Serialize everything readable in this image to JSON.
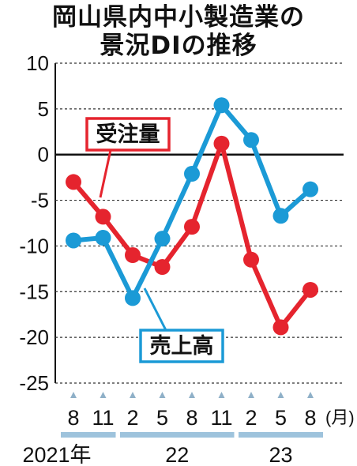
{
  "title_line1": "岡山県内中小製造業の",
  "title_line2": "景況DIの推移",
  "chart_data": {
    "type": "line",
    "title": "岡山県内中小製造業の景況DIの推移",
    "x": [
      "8",
      "11",
      "2",
      "5",
      "8",
      "11",
      "2",
      "5",
      "8"
    ],
    "x_unit": "(月)",
    "year_groups": [
      {
        "label": "2021年",
        "from": 0,
        "to": 1
      },
      {
        "label": "22",
        "from": 2,
        "to": 5
      },
      {
        "label": "23",
        "from": 6,
        "to": 8
      }
    ],
    "yticks": [
      "10",
      "5",
      "0",
      "-5",
      "-10",
      "-15",
      "-20",
      "-25"
    ],
    "ylim": [
      -25,
      10
    ],
    "grid": "dashed-horizontal",
    "series": [
      {
        "name": "受注量",
        "color": "#e5242e",
        "values": [
          -3.0,
          -6.8,
          -11.0,
          -12.3,
          -7.9,
          1.2,
          -11.5,
          -18.9,
          -14.8
        ]
      },
      {
        "name": "売上高",
        "color": "#1b9ad6",
        "values": [
          -9.4,
          -9.1,
          -15.7,
          -9.2,
          -2.1,
          5.4,
          1.6,
          -6.7,
          -3.8
        ]
      }
    ]
  }
}
